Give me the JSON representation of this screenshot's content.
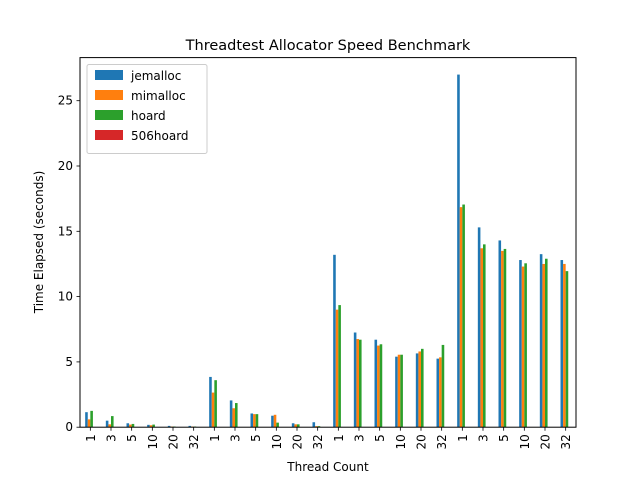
{
  "chart_data": {
    "type": "bar",
    "title": "Threadtest Allocator Speed Benchmark",
    "xlabel": "Thread Count",
    "ylabel": "Time Elapsed (seconds)",
    "ylim": [
      0,
      28.3
    ],
    "yticks": [
      0,
      5,
      10,
      15,
      20,
      25
    ],
    "grid": false,
    "legend_position": "upper-left",
    "categories": [
      "1",
      "3",
      "5",
      "10",
      "20",
      "32",
      "1",
      "3",
      "5",
      "10",
      "20",
      "32",
      "1",
      "3",
      "5",
      "10",
      "20",
      "32",
      "1",
      "3",
      "5",
      "10",
      "20",
      "32"
    ],
    "series": [
      {
        "name": "jemalloc",
        "color": "#1f77b4",
        "values": [
          1.15,
          0.5,
          0.3,
          0.18,
          0.1,
          0.1,
          3.85,
          2.05,
          1.05,
          0.88,
          0.3,
          0.38,
          13.2,
          7.25,
          6.7,
          5.4,
          5.65,
          5.25,
          27.0,
          15.3,
          14.3,
          12.8,
          13.25,
          12.8
        ]
      },
      {
        "name": "mimalloc",
        "color": "#ff7f0e",
        "values": [
          0.6,
          0.22,
          0.2,
          0.15,
          0.05,
          0.05,
          2.65,
          1.45,
          1.0,
          0.95,
          0.22,
          0.08,
          9.0,
          6.75,
          6.25,
          5.55,
          5.8,
          5.35,
          16.85,
          13.7,
          13.5,
          12.3,
          12.5,
          12.5
        ]
      },
      {
        "name": "hoard",
        "color": "#2ca02c",
        "values": [
          1.25,
          0.85,
          0.25,
          0.2,
          0.05,
          0.05,
          3.6,
          1.85,
          1.0,
          0.35,
          0.22,
          0.08,
          9.35,
          6.7,
          6.35,
          5.55,
          6.0,
          6.3,
          17.05,
          14.0,
          13.65,
          12.55,
          12.9,
          11.95
        ]
      },
      {
        "name": "506hoard",
        "color": "#d62728",
        "values": [
          0,
          0,
          0,
          0,
          0,
          0,
          0,
          0,
          0,
          0,
          0,
          0,
          0,
          0,
          0,
          0,
          0,
          0,
          0,
          0,
          0,
          0,
          0,
          0
        ]
      }
    ]
  }
}
